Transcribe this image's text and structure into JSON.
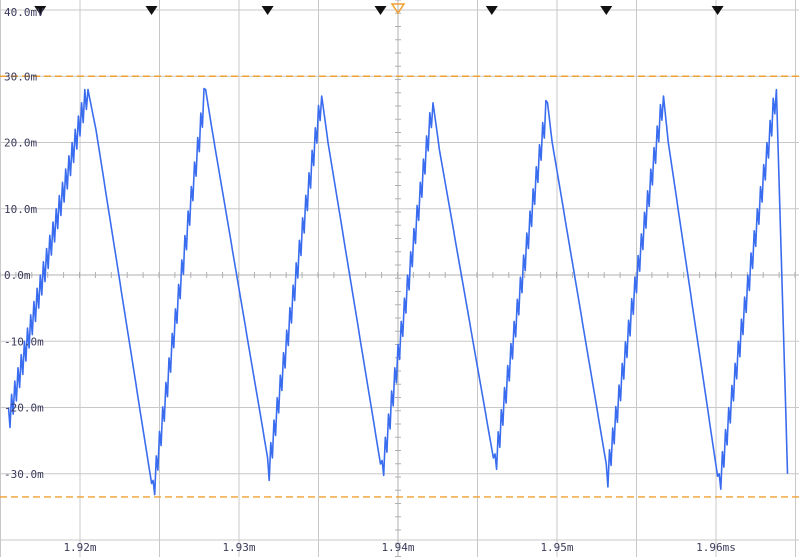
{
  "chart_data": {
    "type": "line",
    "title": "",
    "xlabel": "",
    "ylabel": "",
    "xlim": [
      1.9155,
      1.9645
    ],
    "ylim": [
      -40,
      40
    ],
    "y_unit": "mV",
    "x_unit": "ms",
    "y_tick_labels": [
      "40.0mV",
      "30.0m",
      "20.0m",
      "10.0m",
      "0.0m",
      "-10.0m",
      "-20.0m",
      "-30.0m"
    ],
    "y_tick_values": [
      40,
      30,
      20,
      10,
      0,
      -10,
      -20,
      -30
    ],
    "x_tick_labels": [
      "1.92m",
      "1.93m",
      "1.94m",
      "1.95m",
      "1.96ms"
    ],
    "x_tick_values": [
      1.92,
      1.93,
      1.94,
      1.95,
      1.96
    ],
    "grid": true,
    "cursors": {
      "upper_mV": 30,
      "lower_mV": -33.5,
      "color": "#f0a030"
    },
    "trigger_markers_ms": [
      1.9175,
      1.9245,
      1.9318,
      1.9389,
      1.9459,
      1.9531,
      1.9601
    ],
    "trigger_position_ms": 1.94,
    "series": [
      {
        "color": "#3a6cf0",
        "x": [
          1.9155,
          1.9205,
          1.921,
          1.9246,
          1.9279,
          1.9283,
          1.9319,
          1.9352,
          1.9356,
          1.939,
          1.9422,
          1.9426,
          1.9461,
          1.9494,
          1.9497,
          1.9532,
          1.9567,
          1.957,
          1.9602,
          1.9638,
          1.9645
        ],
        "values": [
          -22,
          28,
          22,
          -33,
          28,
          22,
          -29,
          27,
          20,
          -30,
          26,
          19,
          -29,
          26,
          20,
          -30,
          27,
          20,
          -32,
          28,
          -30
        ],
        "ripple_mV": 4
      }
    ]
  }
}
